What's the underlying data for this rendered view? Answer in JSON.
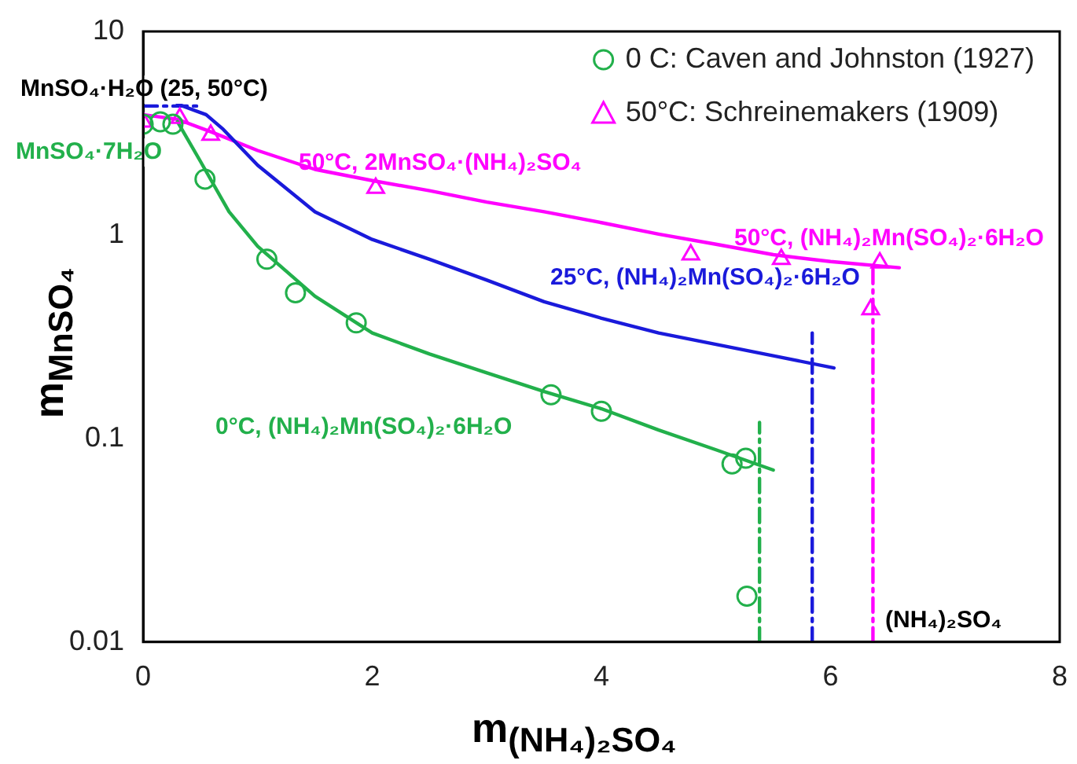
{
  "chart_data": {
    "type": "scatter",
    "xlabel": "m$_{(NH₄)₂SO₄}$",
    "ylabel": "m$_{MnSO₄}$",
    "xlim": [
      0,
      8
    ],
    "xticks": [
      0,
      2,
      4,
      6,
      8
    ],
    "ylim": [
      0.01,
      10
    ],
    "yticks": [
      0.01,
      0.1,
      1,
      10
    ],
    "log": "y",
    "grid": false,
    "legend": "top right",
    "series": [
      {
        "name": "0 C: Caven and Johnston (1927)",
        "marker": "circle",
        "color": "#22b04b",
        "x": [
          0,
          0.15,
          0.26,
          0.54,
          1.08,
          1.33,
          1.86,
          3.56,
          4.0,
          5.14,
          5.26,
          5.27
        ],
        "values": [
          3.5,
          3.6,
          3.5,
          1.88,
          0.76,
          0.52,
          0.37,
          0.164,
          0.136,
          0.075,
          0.08,
          0.0168
        ]
      },
      {
        "name": "50°C: Schreinemakers (1909)",
        "marker": "triangle",
        "color": "#ff00ff",
        "x": [
          0,
          0.32,
          0.59,
          2.03,
          4.78,
          5.57,
          6.43,
          6.35
        ],
        "values": [
          3.6,
          3.75,
          3.1,
          1.7,
          0.8,
          0.76,
          0.73,
          0.43
        ]
      },
      {
        "type": "line",
        "marker": "none",
        "color": "#22b04b",
        "x": [
          0.3,
          0.5,
          0.75,
          1.0,
          1.5,
          2,
          2.5,
          3,
          3.5,
          4,
          4.5,
          5,
          5.5
        ],
        "values": [
          3.6,
          2.3,
          1.3,
          0.88,
          0.5,
          0.33,
          0.26,
          0.21,
          0.17,
          0.14,
          0.11,
          0.088,
          0.07
        ]
      },
      {
        "type": "line",
        "marker": "none",
        "color": "#1a1adb",
        "x": [
          0.3,
          0.55,
          0.7,
          1.0,
          1.5,
          2,
          2.5,
          3,
          3.5,
          4,
          4.5,
          5,
          5.5,
          6.03
        ],
        "values": [
          4.4,
          3.9,
          3.3,
          2.2,
          1.3,
          0.95,
          0.76,
          0.6,
          0.47,
          0.39,
          0.33,
          0.29,
          0.255,
          0.222
        ]
      },
      {
        "type": "line",
        "marker": "none",
        "color": "#ff00ff",
        "x": [
          0,
          0.3,
          0.6,
          1,
          1.5,
          2,
          2.5,
          3,
          3.5,
          4,
          4.5,
          5,
          5.5,
          6,
          6.6
        ],
        "values": [
          3.9,
          3.7,
          3.2,
          2.6,
          2.1,
          1.85,
          1.65,
          1.45,
          1.3,
          1.15,
          1.01,
          0.9,
          0.8,
          0.74,
          0.69
        ]
      },
      {
        "type": "line",
        "marker": "none",
        "line_style": "dashed",
        "color": "#1a1adb",
        "x": [
          0,
          0.5
        ],
        "values": [
          4.3,
          4.3
        ]
      },
      {
        "type": "line",
        "marker": "none",
        "line_style": "dashed",
        "color": "#22b04b",
        "x": [
          5.38,
          5.38
        ],
        "values": [
          0.01,
          0.12
        ]
      },
      {
        "type": "line",
        "marker": "none",
        "line_style": "dashed",
        "color": "#1a1adb",
        "x": [
          5.84,
          5.84
        ],
        "values": [
          0.01,
          0.33
        ]
      },
      {
        "type": "line",
        "marker": "none",
        "line_style": "dashed",
        "color": "#ff00ff",
        "x": [
          6.37,
          6.37
        ],
        "values": [
          0.01,
          0.7
        ]
      }
    ],
    "annotations": [
      "MnSO₄·H₂O (25, 50°C)",
      "MnSO₄·7H₂O",
      "50°C, 2MnSO₄·(NH₄)₂SO₄",
      "50°C, (NH₄)₂Mn(SO₄)₂·6H₂O",
      "25°C, (NH₄)₂Mn(SO₄)₂·6H₂O",
      "0°C, (NH₄)₂Mn(SO₄)₂·6H₂O",
      "(NH₄)₂SO₄"
    ]
  }
}
